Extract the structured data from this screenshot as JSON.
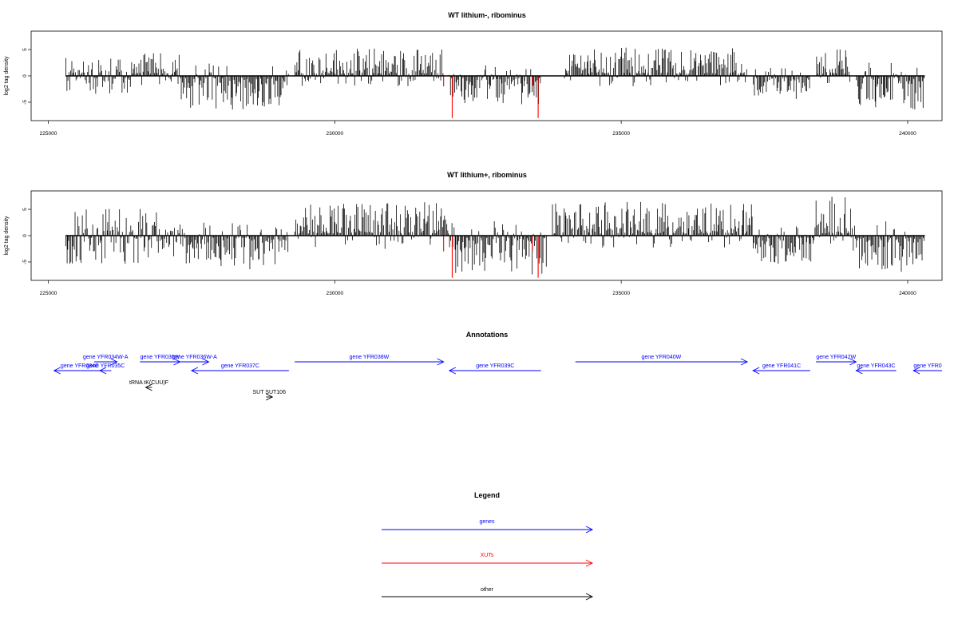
{
  "chart_data": [
    {
      "type": "bar",
      "title": "WT lithium-, ribominus",
      "ylabel": "log2 tag density",
      "xlim": [
        224700,
        240600
      ],
      "ylim": [
        -8.5,
        8.5
      ],
      "xticks": [
        225000,
        230000,
        235000,
        240000
      ],
      "yticks": [
        -5,
        0,
        5
      ],
      "data_range": [
        225300,
        240300
      ],
      "blocks": [
        {
          "from": 225300,
          "to": 226500,
          "side": "both",
          "max": 3
        },
        {
          "from": 226500,
          "to": 227300,
          "side": "up",
          "max": 4
        },
        {
          "from": 227300,
          "to": 229200,
          "side": "down",
          "max": 6
        },
        {
          "from": 229300,
          "to": 231900,
          "side": "up",
          "max": 5
        },
        {
          "from": 232000,
          "to": 233600,
          "side": "down",
          "max": 5
        },
        {
          "from": 234000,
          "to": 237200,
          "side": "up",
          "max": 5
        },
        {
          "from": 237300,
          "to": 238300,
          "side": "down",
          "max": 4
        },
        {
          "from": 238400,
          "to": 239000,
          "side": "up",
          "max": 5
        },
        {
          "from": 239100,
          "to": 240300,
          "side": "down",
          "max": 6
        }
      ],
      "red_spikes": [
        {
          "x": 231900,
          "y": -2
        },
        {
          "x": 232050,
          "y": -8
        },
        {
          "x": 233450,
          "y": -2
        },
        {
          "x": 233550,
          "y": -8
        }
      ]
    },
    {
      "type": "bar",
      "title": "WT lithium+, ribominus",
      "ylabel": "log2 tag density",
      "xlim": [
        224700,
        240600
      ],
      "ylim": [
        -8.5,
        8.5
      ],
      "xticks": [
        225000,
        230000,
        235000,
        240000
      ],
      "yticks": [
        -5,
        0,
        5
      ],
      "data_range": [
        225300,
        240300
      ],
      "blocks": [
        {
          "from": 225300,
          "to": 226700,
          "side": "both",
          "max": 5
        },
        {
          "from": 226700,
          "to": 227400,
          "side": "both",
          "max": 4
        },
        {
          "from": 227400,
          "to": 229200,
          "side": "down",
          "max": 6
        },
        {
          "from": 229300,
          "to": 232000,
          "side": "up",
          "max": 6
        },
        {
          "from": 232000,
          "to": 233700,
          "side": "down",
          "max": 7
        },
        {
          "from": 233800,
          "to": 237300,
          "side": "up",
          "max": 6
        },
        {
          "from": 237300,
          "to": 238400,
          "side": "down",
          "max": 5
        },
        {
          "from": 238400,
          "to": 239100,
          "side": "up",
          "max": 7
        },
        {
          "from": 239100,
          "to": 240300,
          "side": "down",
          "max": 7
        }
      ],
      "red_spikes": [
        {
          "x": 231900,
          "y": -3
        },
        {
          "x": 232050,
          "y": -8
        },
        {
          "x": 233450,
          "y": -3
        },
        {
          "x": 233550,
          "y": -8
        }
      ]
    }
  ],
  "annotations": {
    "title": "Annotations",
    "xlim": [
      224700,
      240600
    ],
    "features": [
      {
        "label": "gene YFR034W-A",
        "from": 225800,
        "to": 226200,
        "strand": "+",
        "row": 0,
        "kind": "gene"
      },
      {
        "label": "gene YFR036W",
        "from": 226600,
        "to": 227300,
        "strand": "+",
        "row": 0,
        "kind": "gene"
      },
      {
        "label": "gene YFR036W-A",
        "from": 227300,
        "to": 227800,
        "strand": "+",
        "row": 0,
        "kind": "gene"
      },
      {
        "label": "gene YFR038W",
        "from": 229300,
        "to": 231900,
        "strand": "+",
        "row": 0,
        "kind": "gene"
      },
      {
        "label": "gene YFR040W",
        "from": 234200,
        "to": 237200,
        "strand": "+",
        "row": 0,
        "kind": "gene"
      },
      {
        "label": "gene YFR042W",
        "from": 238400,
        "to": 239100,
        "strand": "+",
        "row": 0,
        "kind": "gene"
      },
      {
        "label": "gene YFR034C",
        "from": 225100,
        "to": 226000,
        "strand": "-",
        "row": 1,
        "kind": "gene"
      },
      {
        "label": "gene YFR035C",
        "from": 225900,
        "to": 226100,
        "strand": "-",
        "row": 1,
        "kind": "gene"
      },
      {
        "label": "gene YFR037C",
        "from": 227500,
        "to": 229200,
        "strand": "-",
        "row": 1,
        "kind": "gene"
      },
      {
        "label": "gene YFR039C",
        "from": 232000,
        "to": 233600,
        "strand": "-",
        "row": 1,
        "kind": "gene"
      },
      {
        "label": "gene YFR041C",
        "from": 237300,
        "to": 238300,
        "strand": "-",
        "row": 1,
        "kind": "gene"
      },
      {
        "label": "gene YFR043C",
        "from": 239100,
        "to": 239800,
        "strand": "-",
        "row": 1,
        "kind": "gene"
      },
      {
        "label": "gene YFR0",
        "from": 240100,
        "to": 240600,
        "strand": "-",
        "row": 1,
        "kind": "gene"
      },
      {
        "label": "tRNA tK(CUU)F",
        "from": 226700,
        "to": 226800,
        "strand": "-",
        "row": 2,
        "kind": "other"
      },
      {
        "label": "SUT SUT106",
        "from": 228800,
        "to": 228900,
        "strand": "+",
        "row": 3,
        "kind": "other"
      }
    ]
  },
  "legend": {
    "title": "Legend",
    "items": [
      {
        "label": "genes",
        "color": "#0000ff"
      },
      {
        "label": "XUTs",
        "color": "#ff0000"
      },
      {
        "label": "other",
        "color": "#000000"
      }
    ]
  },
  "colors": {
    "gene": "#0000ff",
    "xut": "#ff0000",
    "other": "#000000",
    "signal": "#000000"
  }
}
